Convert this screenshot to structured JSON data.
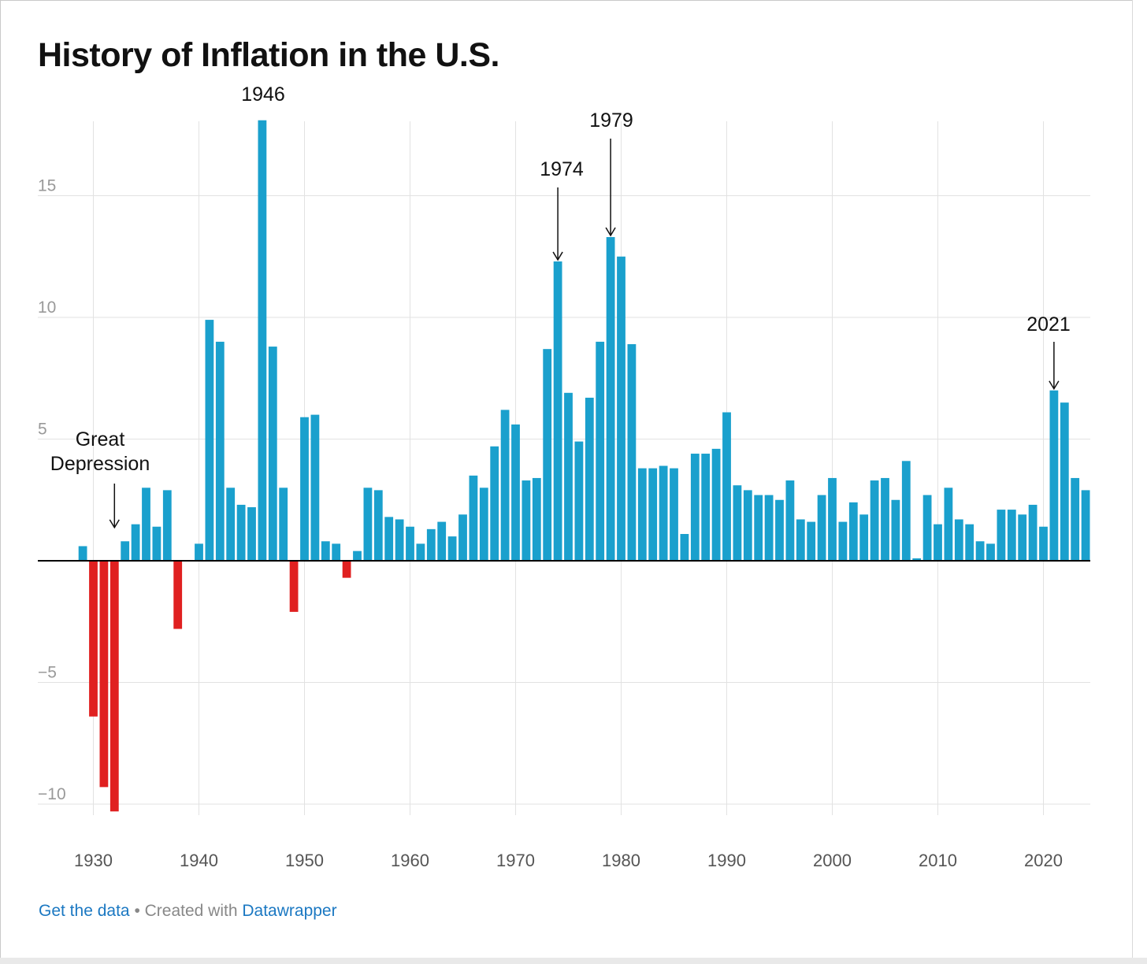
{
  "title": "History of Inflation in the U.S.",
  "footer": {
    "data_link": "Get the data",
    "separator": "•",
    "created_with": "Created with",
    "tool_link": "Datawrapper"
  },
  "colors": {
    "positive": "#1aa0cd",
    "negative": "#e02020",
    "grid": "#e2e2e2",
    "baseline": "#000000",
    "tick_text": "#999999",
    "xtick_text": "#555555",
    "link": "#1b78c2"
  },
  "chart_data": {
    "type": "bar",
    "title": "History of Inflation in the U.S.",
    "xlabel": "",
    "ylabel": "",
    "ylim": [
      -10.5,
      18.1
    ],
    "xlim": [
      1929,
      2024
    ],
    "yticks": [
      -10,
      -5,
      5,
      10,
      15
    ],
    "ytick_labels": [
      "−10",
      "−5",
      "5",
      "10",
      "15"
    ],
    "xticks": [
      1930,
      1940,
      1950,
      1960,
      1970,
      1980,
      1990,
      2000,
      2010,
      2020
    ],
    "grid": true,
    "legend": "none",
    "x": [
      1929,
      1930,
      1931,
      1932,
      1933,
      1934,
      1935,
      1936,
      1937,
      1938,
      1939,
      1940,
      1941,
      1942,
      1943,
      1944,
      1945,
      1946,
      1947,
      1948,
      1949,
      1950,
      1951,
      1952,
      1953,
      1954,
      1955,
      1956,
      1957,
      1958,
      1959,
      1960,
      1961,
      1962,
      1963,
      1964,
      1965,
      1966,
      1967,
      1968,
      1969,
      1970,
      1971,
      1972,
      1973,
      1974,
      1975,
      1976,
      1977,
      1978,
      1979,
      1980,
      1981,
      1982,
      1983,
      1984,
      1985,
      1986,
      1987,
      1988,
      1989,
      1990,
      1991,
      1992,
      1993,
      1994,
      1995,
      1996,
      1997,
      1998,
      1999,
      2000,
      2001,
      2002,
      2003,
      2004,
      2005,
      2006,
      2007,
      2008,
      2009,
      2010,
      2011,
      2012,
      2013,
      2014,
      2015,
      2016,
      2017,
      2018,
      2019,
      2020,
      2021,
      2022,
      2023,
      2024
    ],
    "values": [
      0.6,
      -6.4,
      -9.3,
      -10.3,
      0.8,
      1.5,
      3.0,
      1.4,
      2.9,
      -2.8,
      0.0,
      0.7,
      9.9,
      9.0,
      3.0,
      2.3,
      2.2,
      18.1,
      8.8,
      3.0,
      -2.1,
      5.9,
      6.0,
      0.8,
      0.7,
      -0.7,
      0.4,
      3.0,
      2.9,
      1.8,
      1.7,
      1.4,
      0.7,
      1.3,
      1.6,
      1.0,
      1.9,
      3.5,
      3.0,
      4.7,
      6.2,
      5.6,
      3.3,
      3.4,
      8.7,
      12.3,
      6.9,
      4.9,
      6.7,
      9.0,
      13.3,
      12.5,
      8.9,
      3.8,
      3.8,
      3.9,
      3.8,
      1.1,
      4.4,
      4.4,
      4.6,
      6.1,
      3.1,
      2.9,
      2.7,
      2.7,
      2.5,
      3.3,
      1.7,
      1.6,
      2.7,
      3.4,
      1.6,
      2.4,
      1.9,
      3.3,
      3.4,
      2.5,
      4.1,
      0.1,
      2.7,
      1.5,
      3.0,
      1.7,
      1.5,
      0.8,
      0.7,
      2.1,
      2.1,
      1.9,
      2.3,
      1.4,
      7.0,
      6.5,
      3.4,
      2.9
    ],
    "annotations": [
      {
        "year": 1932,
        "label_lines": [
          "Great",
          "Depression"
        ],
        "arrow": true,
        "arrow_to_value": 1.3
      },
      {
        "year": 1946,
        "label_lines": [
          "1946"
        ],
        "arrow": false
      },
      {
        "year": 1974,
        "label_lines": [
          "1974"
        ],
        "arrow": true,
        "arrow_to_value": 12.3
      },
      {
        "year": 1979,
        "label_lines": [
          "1979"
        ],
        "arrow": true,
        "arrow_to_value": 13.3
      },
      {
        "year": 2021,
        "label_lines": [
          "2021"
        ],
        "arrow": true,
        "arrow_to_value": 7.0
      }
    ]
  }
}
